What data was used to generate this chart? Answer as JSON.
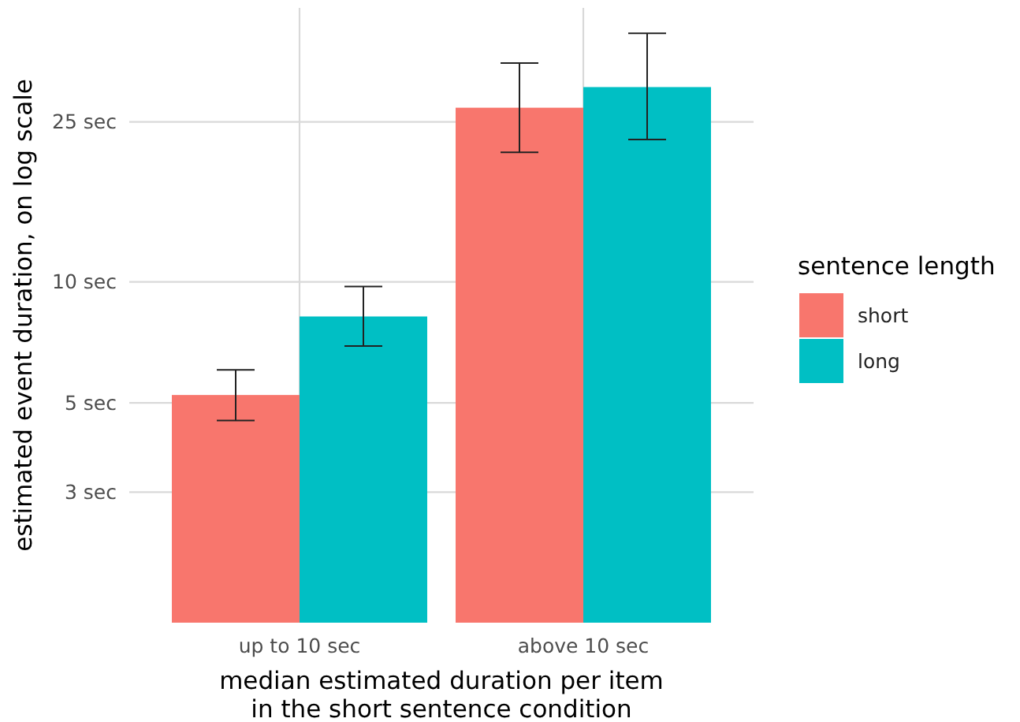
{
  "chart_data": {
    "type": "bar",
    "xlabel": "median estimated duration per item\nin the short sentence condition",
    "ylabel": "estimated event duration, on log scale",
    "legend_title": "sentence length",
    "categories": [
      "up to 10 sec",
      "above 10 sec"
    ],
    "series": [
      {
        "name": "short",
        "color": "#f8766d",
        "values": [
          5.23,
          27.1
        ],
        "errors": [
          [
            4.52,
            6.04
          ],
          [
            21.0,
            35.0
          ]
        ]
      },
      {
        "name": "long",
        "color": "#00bfc4",
        "values": [
          8.2,
          30.5
        ],
        "errors": [
          [
            6.92,
            9.73
          ],
          [
            22.6,
            41.5
          ]
        ]
      }
    ],
    "log": true,
    "ylim": [
      1.42,
      48
    ],
    "yticks": [
      {
        "value": 3,
        "label": "3 sec"
      },
      {
        "value": 5,
        "label": "5 sec"
      },
      {
        "value": 10,
        "label": "10 sec"
      },
      {
        "value": 25,
        "label": "25 sec"
      }
    ],
    "grid": true,
    "legend": "right"
  }
}
